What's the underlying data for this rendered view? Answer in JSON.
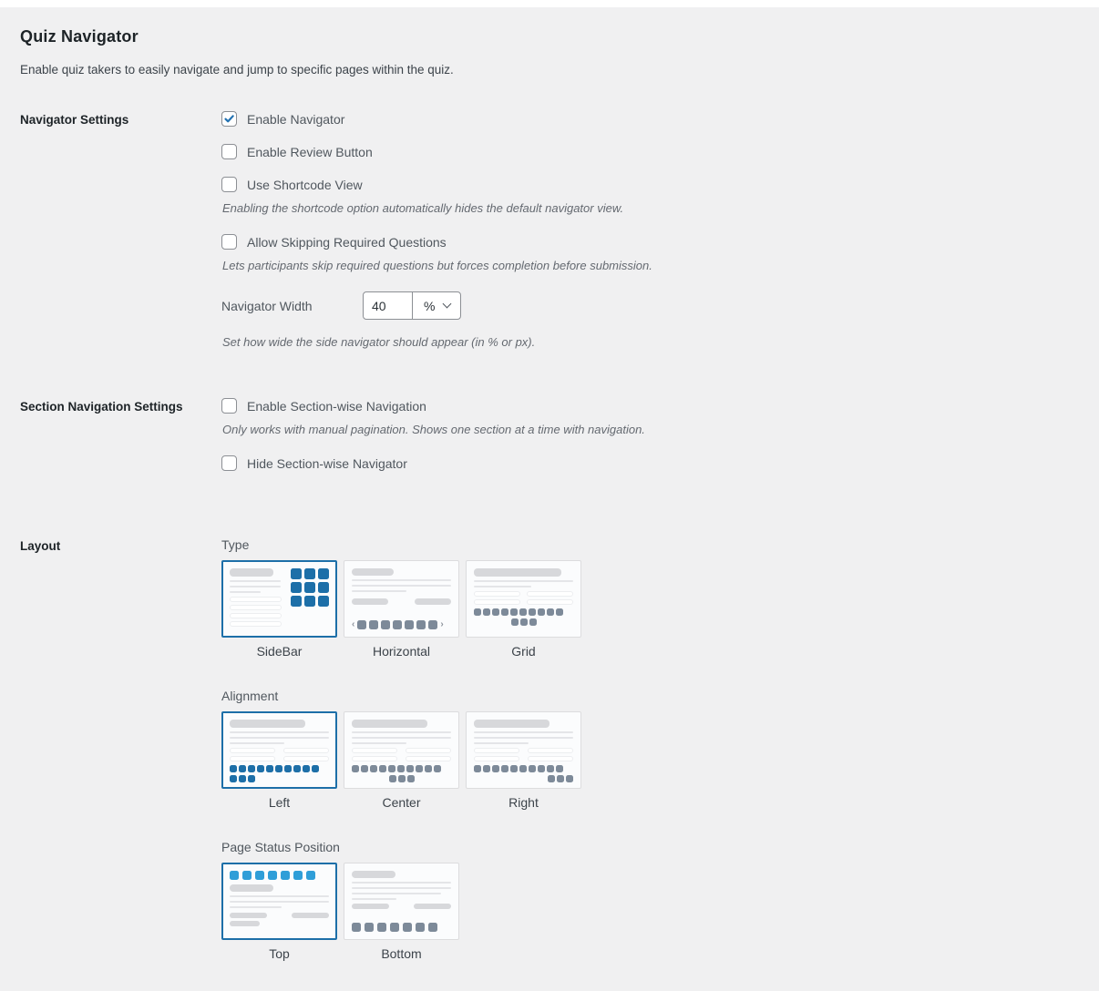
{
  "page": {
    "title": "Quiz Navigator",
    "subtitle": "Enable quiz takers to easily navigate and jump to specific pages within the quiz."
  },
  "sections": {
    "navigator": {
      "label": "Navigator Settings",
      "checkboxes": [
        {
          "label": "Enable Navigator",
          "checked": true
        },
        {
          "label": "Enable Review Button",
          "checked": false
        },
        {
          "label": "Use Shortcode View",
          "checked": false,
          "help": "Enabling the shortcode option automatically hides the default navigator view."
        },
        {
          "label": "Allow Skipping Required Questions",
          "checked": false,
          "help": "Lets participants skip required questions but forces completion before submission."
        }
      ],
      "width_field": {
        "label": "Navigator Width",
        "value": "40",
        "unit": "%",
        "help": "Set how wide the side navigator should appear (in % or px)."
      }
    },
    "section_nav": {
      "label": "Section Navigation Settings",
      "checkboxes": [
        {
          "label": "Enable Section-wise Navigation",
          "checked": false,
          "help": "Only works with manual pagination. Shows one section at a time with navigation."
        },
        {
          "label": "Hide Section-wise Navigator",
          "checked": false
        }
      ]
    },
    "layout": {
      "label": "Layout",
      "groups": [
        {
          "id": "type",
          "label": "Type",
          "options": [
            {
              "label": "SideBar",
              "thumb": "sidebar",
              "selected": true
            },
            {
              "label": "Horizontal",
              "thumb": "horizontal",
              "selected": false
            },
            {
              "label": "Grid",
              "thumb": "grid",
              "selected": false
            }
          ]
        },
        {
          "id": "alignment",
          "label": "Alignment",
          "options": [
            {
              "label": "Left",
              "thumb": "align-left",
              "selected": true
            },
            {
              "label": "Center",
              "thumb": "align-center",
              "selected": false
            },
            {
              "label": "Right",
              "thumb": "align-right",
              "selected": false
            }
          ]
        },
        {
          "id": "page_status_position",
          "label": "Page Status Position",
          "options": [
            {
              "label": "Top",
              "thumb": "status-top",
              "selected": true
            },
            {
              "label": "Bottom",
              "thumb": "status-bottom",
              "selected": false
            }
          ]
        }
      ]
    }
  },
  "icons": {
    "checkmark_icon": "check",
    "chevron_down_icon": "chevron-down",
    "prev_arrow": "‹",
    "next_arrow": "›"
  },
  "colors": {
    "accent": "#2271b1",
    "selected_border": "#1d6fa8",
    "dark_blue_square": "#1d6fa8",
    "light_blue_square": "#2f9ed8",
    "gray_square": "#7d8a99"
  }
}
